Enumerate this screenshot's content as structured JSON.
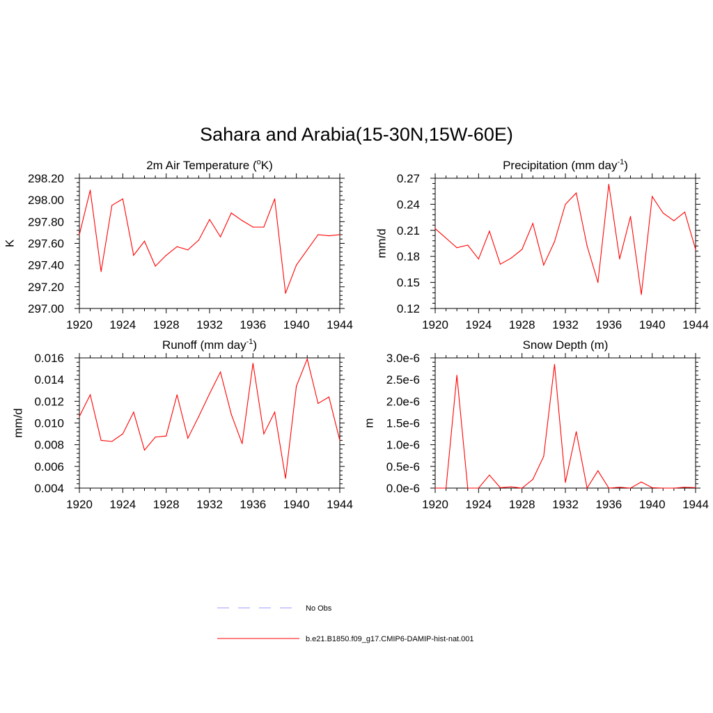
{
  "figure": {
    "title": "Sahara and Arabia(15-30N,15W-60E)"
  },
  "legend": {
    "items": [
      {
        "label": "No Obs",
        "style": "dashed",
        "color": "#9999ff"
      },
      {
        "label": "b.e21.B1850.f09_g17.CMIP6-DAMIP-hist-nat.001",
        "style": "solid",
        "color": "#ff0000"
      }
    ]
  },
  "chart_data": [
    {
      "type": "line",
      "title": "2m Air Temperature (oK)",
      "ylabel": "K",
      "xlim": [
        1920,
        1944
      ],
      "ylim": [
        297.0,
        298.2
      ],
      "xticks": [
        "1920",
        "1924",
        "1928",
        "1932",
        "1936",
        "1940",
        "1944"
      ],
      "yticks": [
        "297.00",
        "297.20",
        "297.40",
        "297.60",
        "297.80",
        "298.00",
        "298.20"
      ],
      "x": [
        1920,
        1921,
        1922,
        1923,
        1924,
        1925,
        1926,
        1927,
        1928,
        1929,
        1930,
        1931,
        1932,
        1933,
        1934,
        1935,
        1936,
        1937,
        1938,
        1939,
        1940,
        1941,
        1942,
        1943,
        1944
      ],
      "series": [
        {
          "color": "#ff0000",
          "values": [
            297.68,
            298.09,
            297.34,
            297.95,
            298.01,
            297.49,
            297.62,
            297.39,
            297.49,
            297.57,
            297.54,
            297.63,
            297.82,
            297.66,
            297.88,
            297.81,
            297.75,
            297.75,
            298.01,
            297.14,
            297.4,
            297.54,
            297.68,
            297.67,
            297.68
          ]
        }
      ]
    },
    {
      "type": "line",
      "title": "Precipitation (mm day-1)",
      "ylabel": "mm/d",
      "xlim": [
        1920,
        1944
      ],
      "ylim": [
        0.12,
        0.27
      ],
      "xticks": [
        "1920",
        "1924",
        "1928",
        "1932",
        "1936",
        "1940",
        "1944"
      ],
      "yticks": [
        "0.12",
        "0.15",
        "0.18",
        "0.21",
        "0.24",
        "0.27"
      ],
      "x": [
        1920,
        1921,
        1922,
        1923,
        1924,
        1925,
        1926,
        1927,
        1928,
        1929,
        1930,
        1931,
        1932,
        1933,
        1934,
        1935,
        1936,
        1937,
        1938,
        1939,
        1940,
        1941,
        1942,
        1943,
        1944
      ],
      "series": [
        {
          "color": "#ff0000",
          "values": [
            0.212,
            0.201,
            0.19,
            0.193,
            0.177,
            0.209,
            0.171,
            0.178,
            0.188,
            0.218,
            0.17,
            0.197,
            0.24,
            0.253,
            0.192,
            0.15,
            0.263,
            0.177,
            0.226,
            0.136,
            0.249,
            0.23,
            0.221,
            0.231,
            0.188
          ]
        }
      ]
    },
    {
      "type": "line",
      "title": "Runoff (mm day-1)",
      "ylabel": "mm/d",
      "xlim": [
        1920,
        1944
      ],
      "ylim": [
        0.004,
        0.016
      ],
      "xticks": [
        "1920",
        "1924",
        "1928",
        "1932",
        "1936",
        "1940",
        "1944"
      ],
      "yticks": [
        "0.004",
        "0.006",
        "0.008",
        "0.010",
        "0.012",
        "0.014",
        "0.016"
      ],
      "x": [
        1920,
        1921,
        1922,
        1923,
        1924,
        1925,
        1926,
        1927,
        1928,
        1929,
        1930,
        1931,
        1932,
        1933,
        1934,
        1935,
        1936,
        1937,
        1938,
        1939,
        1940,
        1941,
        1942,
        1943,
        1944
      ],
      "series": [
        {
          "color": "#ff0000",
          "values": [
            0.0106,
            0.0126,
            0.0084,
            0.0083,
            0.009,
            0.011,
            0.0075,
            0.0087,
            0.0088,
            0.0126,
            0.0086,
            0.0106,
            0.0127,
            0.0147,
            0.0108,
            0.0081,
            0.0155,
            0.009,
            0.011,
            0.0049,
            0.0134,
            0.0159,
            0.0118,
            0.0124,
            0.0084
          ]
        }
      ]
    },
    {
      "type": "line",
      "title": "Snow Depth (m)",
      "ylabel": "m",
      "xlim": [
        1920,
        1944
      ],
      "ylim": [
        0.0,
        3e-06
      ],
      "xticks": [
        "1920",
        "1924",
        "1928",
        "1932",
        "1936",
        "1940",
        "1944"
      ],
      "yticks": [
        "0.0e-6",
        "0.5e-6",
        "1.0e-6",
        "1.5e-6",
        "2.0e-6",
        "2.5e-6",
        "3.0e-6"
      ],
      "x": [
        1920,
        1921,
        1922,
        1923,
        1924,
        1925,
        1926,
        1927,
        1928,
        1929,
        1930,
        1931,
        1932,
        1933,
        1934,
        1935,
        1936,
        1937,
        1938,
        1939,
        1940,
        1941,
        1942,
        1943,
        1944
      ],
      "series": [
        {
          "color": "#ff0000",
          "values": [
            0.0,
            0.0,
            2.6e-06,
            0.0,
            0.0,
            3e-07,
            1e-08,
            3e-08,
            0.0,
            2e-07,
            7.3e-07,
            2.85e-06,
            1.3e-07,
            1.3e-06,
            0.0,
            4e-07,
            0.0,
            2e-08,
            0.0,
            1.4e-07,
            1e-08,
            0.0,
            0.0,
            2e-08,
            1e-08
          ]
        }
      ]
    }
  ]
}
